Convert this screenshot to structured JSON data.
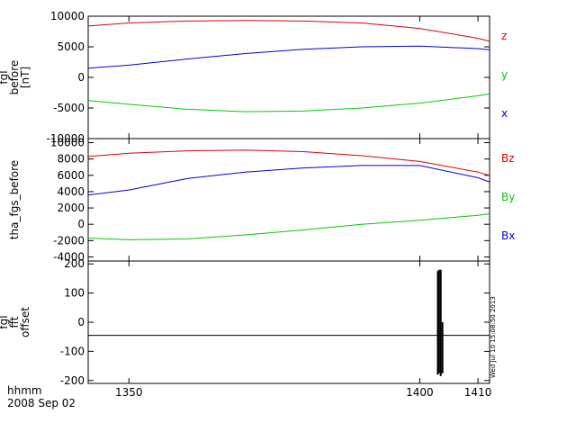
{
  "chart_data": [
    {
      "type": "line",
      "ylabel": [
        "fgl",
        "before",
        "[nT]"
      ],
      "ylim": [
        -10000,
        10000
      ],
      "xlim": [
        1343,
        1412
      ],
      "yticks": [
        "10000",
        "5000",
        "0",
        "-5000",
        "-10000"
      ],
      "ytick_values": [
        10000,
        5000,
        0,
        -5000,
        -10000
      ],
      "legend_placement": "right",
      "series": [
        {
          "name": "z",
          "color": "#e00000",
          "x": [
            1343,
            1350,
            1360,
            1370,
            1380,
            1390,
            1400,
            1410,
            1412
          ],
          "values": [
            8400,
            8900,
            9200,
            9300,
            9200,
            8900,
            8000,
            6400,
            5900
          ]
        },
        {
          "name": "y",
          "color": "#00cc00",
          "x": [
            1343,
            1350,
            1360,
            1370,
            1380,
            1390,
            1400,
            1410,
            1412
          ],
          "values": [
            -3800,
            -4400,
            -5200,
            -5600,
            -5500,
            -5000,
            -4200,
            -3000,
            -2700
          ]
        },
        {
          "name": "x",
          "color": "#0000e0",
          "x": [
            1343,
            1350,
            1360,
            1370,
            1380,
            1390,
            1400,
            1410,
            1412
          ],
          "values": [
            1500,
            2000,
            3000,
            3900,
            4600,
            5000,
            5100,
            4700,
            4500
          ]
        }
      ]
    },
    {
      "type": "line",
      "ylabel": [
        "tha_fgs_before"
      ],
      "ylim": [
        -4500,
        10500
      ],
      "xlim": [
        1343,
        1412
      ],
      "yticks": [
        "10000",
        "8000",
        "6000",
        "4000",
        "2000",
        "0",
        "-2000",
        "-4000"
      ],
      "ytick_values": [
        10000,
        8000,
        6000,
        4000,
        2000,
        0,
        -2000,
        -4000
      ],
      "legend_placement": "right",
      "series": [
        {
          "name": "Bz",
          "color": "#e00000",
          "x": [
            1343,
            1350,
            1360,
            1370,
            1380,
            1390,
            1400,
            1410,
            1412
          ],
          "values": [
            8300,
            8700,
            9000,
            9100,
            8900,
            8400,
            7700,
            6400,
            6000
          ]
        },
        {
          "name": "By",
          "color": "#00cc00",
          "x": [
            1343,
            1350,
            1360,
            1370,
            1380,
            1390,
            1400,
            1410,
            1412
          ],
          "values": [
            -1700,
            -1900,
            -1800,
            -1300,
            -700,
            0,
            500,
            1100,
            1300
          ]
        },
        {
          "name": "Bx",
          "color": "#0000e0",
          "x": [
            1343,
            1350,
            1360,
            1370,
            1380,
            1390,
            1400,
            1410,
            1412
          ],
          "values": [
            3600,
            4200,
            5600,
            6400,
            6900,
            7200,
            7200,
            5700,
            5200
          ]
        }
      ]
    },
    {
      "type": "line",
      "ylabel": [
        "fgl",
        "fft",
        "offset"
      ],
      "ylim": [
        -210,
        210
      ],
      "xlim": [
        1343,
        1412
      ],
      "yticks": [
        "200",
        "100",
        "0",
        "-100",
        "-200"
      ],
      "ytick_values": [
        200,
        100,
        0,
        -100,
        -200
      ],
      "baseline": -45,
      "spikes": [
        {
          "x": 1403.1,
          "low": -180,
          "high": 175
        },
        {
          "x": 1403.3,
          "low": -175,
          "high": 180
        },
        {
          "x": 1403.6,
          "low": -185,
          "high": 180
        },
        {
          "x": 1403.9,
          "low": -175,
          "high": 0
        }
      ]
    }
  ],
  "x_axis": {
    "ticks": [
      "1350",
      "1400",
      "1410"
    ],
    "tick_values": [
      1350,
      1400,
      1410
    ],
    "label_line1": "hhmm",
    "label_line2": "2008 Sep 02"
  },
  "timestamp": "Wed Jul 10 15:08:50 2013"
}
